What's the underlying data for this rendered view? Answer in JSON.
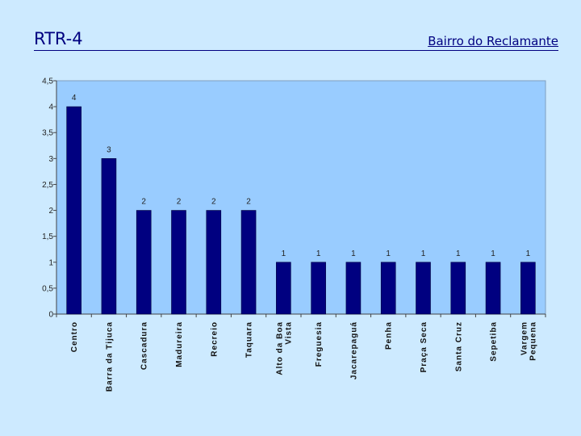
{
  "slide": {
    "title": "RTR-4",
    "subtitle": "Bairro do Reclamante"
  },
  "colors": {
    "background": "#cdeaff",
    "plot_area": "#99ccff",
    "bar_fill": "#000080",
    "text": "#000080"
  },
  "chart_data": {
    "type": "bar",
    "title": "",
    "xlabel": "",
    "ylabel": "",
    "ylim": [
      0,
      4.5
    ],
    "yticks": [
      "0",
      "0,5",
      "1",
      "1,5",
      "2",
      "2,5",
      "3",
      "3,5",
      "4",
      "4,5"
    ],
    "grid": false,
    "legend": "none",
    "categories": [
      [
        "Centro"
      ],
      [
        "Barra da Tijuca"
      ],
      [
        "Cascadura"
      ],
      [
        "Madureira"
      ],
      [
        "Recreio"
      ],
      [
        "Taquara"
      ],
      [
        "Alto da Boa",
        "Vista"
      ],
      [
        "Freguesia"
      ],
      [
        "Jacarepaguá"
      ],
      [
        "Penha"
      ],
      [
        "Praça Seca"
      ],
      [
        "Santa Cruz"
      ],
      [
        "Sepetiba"
      ],
      [
        "Vargem",
        "Pequena"
      ]
    ],
    "values": [
      4,
      3,
      2,
      2,
      2,
      2,
      1,
      1,
      1,
      1,
      1,
      1,
      1,
      1
    ]
  }
}
